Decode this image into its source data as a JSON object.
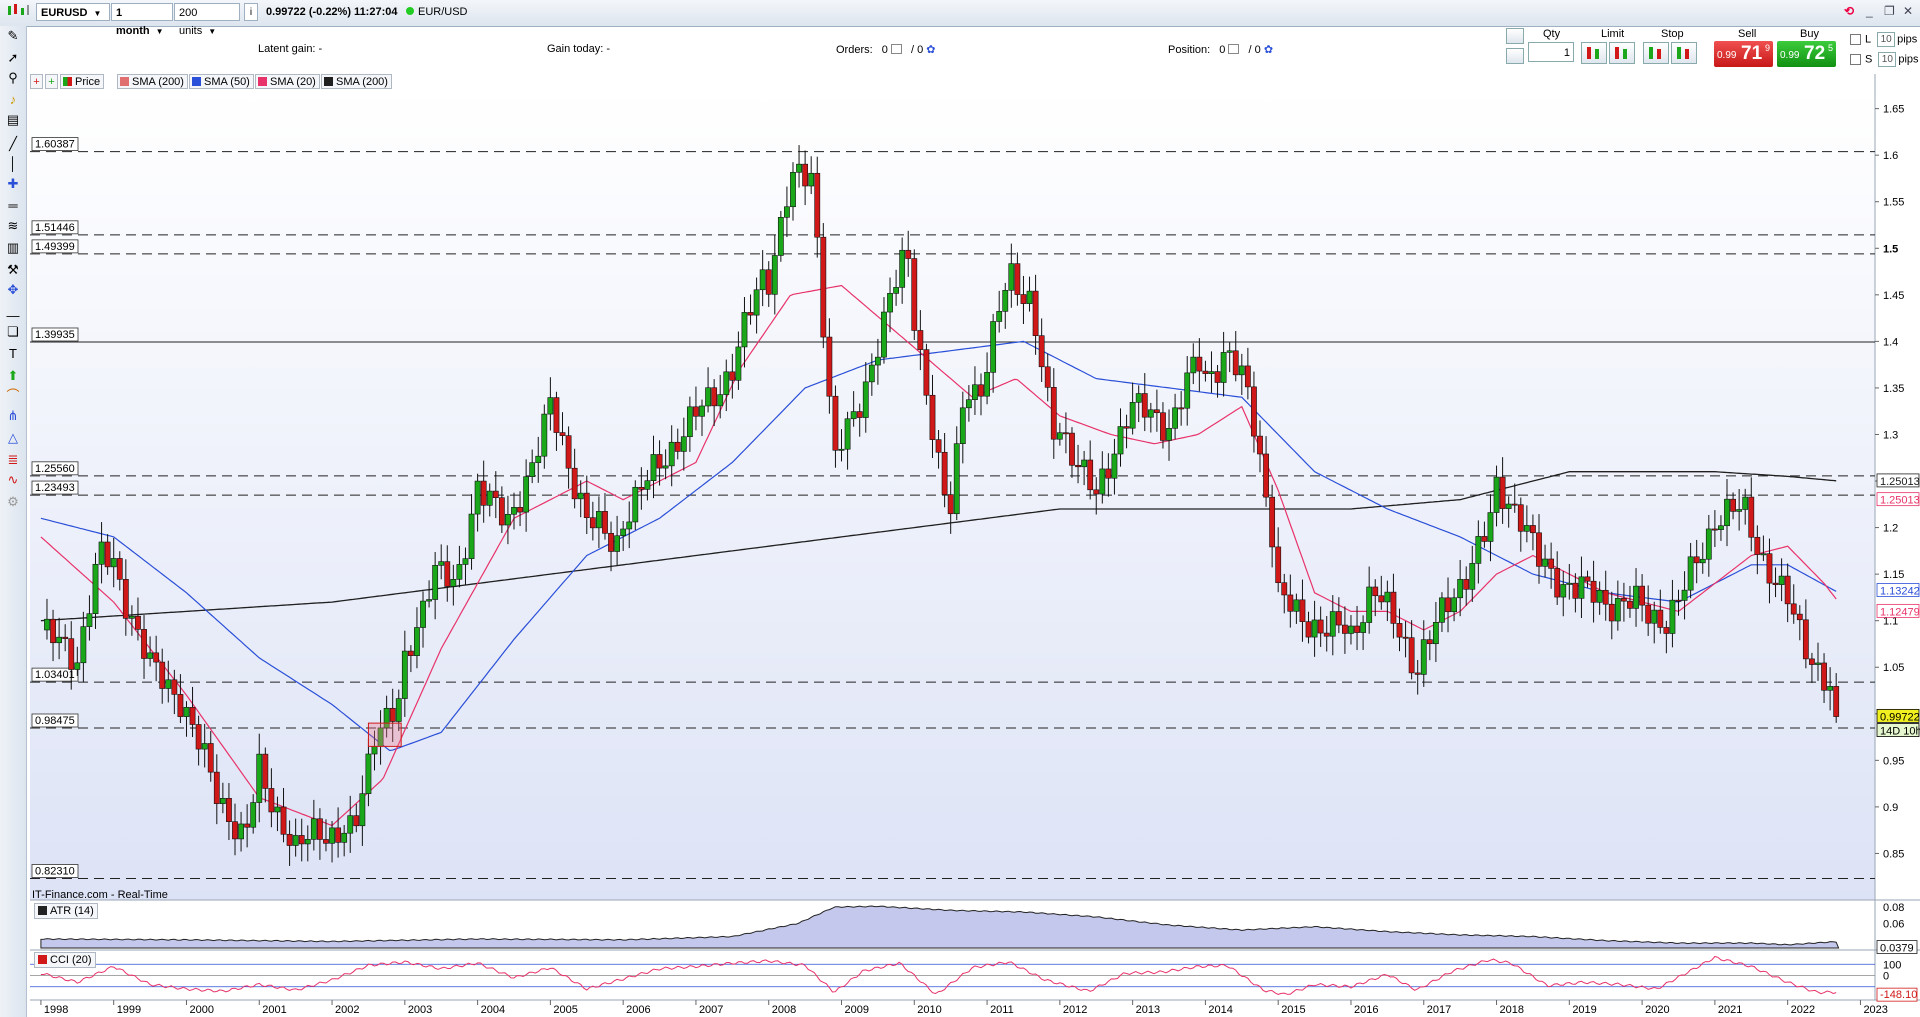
{
  "topbar": {
    "symbol": "EURUSD",
    "timeframe": "1 month",
    "units": "200 units",
    "quote": "0.99722 (-0.22%) 11:27:04",
    "instrument": "EUR/USD"
  },
  "infobar": {
    "latent_gain": "Latent gain:  -",
    "gain_today": "Gain today:  -",
    "orders_label": "Orders:",
    "orders_a": "0",
    "orders_b": "/ 0",
    "position_label": "Position:",
    "position_a": "0",
    "position_b": "/ 0"
  },
  "trade": {
    "qty_label": "Qty",
    "qty_value": "1",
    "limit_label": "Limit",
    "stop_label": "Stop",
    "sell_label": "Sell",
    "buy_label": "Buy",
    "sell_small": "0.99",
    "sell_big": "71",
    "sell_sup": "9",
    "buy_small": "0.99",
    "buy_big": "72",
    "buy_sup": "5",
    "l_label": "L",
    "s_label": "S",
    "l_pips": "10",
    "s_pips": "10",
    "pips": "pips"
  },
  "legend": {
    "price": "Price",
    "sma200a": "SMA (200)",
    "sma50": "SMA (50)",
    "sma20": "SMA (20)",
    "sma200b": "SMA (200)"
  },
  "credit": "IT-Finance.com - Real-Time",
  "atr_label": "ATR (14)",
  "cci_label": "CCI (20)",
  "colors": {
    "up": "#1aa81a",
    "down": "#d01818",
    "sma20": "#e8336a",
    "sma50": "#2a4fd8",
    "sma200": "#202020",
    "plot_bg_top": "#ffffff",
    "plot_bg_bottom": "#dde3f6"
  },
  "chart_data": {
    "type": "candlestick",
    "x_ticks": [
      "1998",
      "1999",
      "2000",
      "2001",
      "2002",
      "2003",
      "2004",
      "2005",
      "2006",
      "2007",
      "2008",
      "2009",
      "2010",
      "2011",
      "2012",
      "2013",
      "2014",
      "2015",
      "2016",
      "2017",
      "2018",
      "2019",
      "2020",
      "2021",
      "2022",
      "2023"
    ],
    "y_ticks": [
      "1.65",
      "1.6",
      "1.55",
      "1.5",
      "1.45",
      "1.4",
      "1.35",
      "1.3",
      "1.25",
      "1.2",
      "1.15",
      "1.1",
      "1.05",
      "1",
      "0.95",
      "0.9",
      "0.85"
    ],
    "ylim": [
      0.8,
      1.67
    ],
    "xlim": [
      1997.85,
      2023.2
    ],
    "key_levels": [
      {
        "label": "1.60387",
        "value": 1.60387,
        "style": "dashed"
      },
      {
        "label": "1.51446",
        "value": 1.51446,
        "style": "dashed"
      },
      {
        "label": "1.49399",
        "value": 1.49399,
        "style": "dashed"
      },
      {
        "label": "1.39935",
        "value": 1.39935,
        "style": "solid"
      },
      {
        "label": "1.25560",
        "value": 1.2556,
        "style": "dashed"
      },
      {
        "label": "1.23493",
        "value": 1.23493,
        "style": "dashed"
      },
      {
        "label": "1.03401",
        "value": 1.03401,
        "style": "dashed"
      },
      {
        "label": "0.98475",
        "value": 0.98475,
        "style": "dashed"
      },
      {
        "label": "0.82310",
        "value": 0.8231,
        "style": "dashed"
      }
    ],
    "right_labels": [
      {
        "label": "1.25013",
        "value": 1.25013,
        "color": "#202020",
        "bg": "#ffffff"
      },
      {
        "label": "1.25013",
        "value": 1.23,
        "color": "#e8336a",
        "bg": "#ffffff"
      },
      {
        "label": "1.13242",
        "value": 1.13242,
        "color": "#2a4fd8",
        "bg": "#ffffff"
      },
      {
        "label": "1.12479",
        "value": 1.11,
        "color": "#e8336a",
        "bg": "#ffffff"
      },
      {
        "label": "0.99722",
        "value": 0.99722,
        "color": "#000000",
        "bg": "#f0f020"
      },
      {
        "label": "14D 10h",
        "value": 0.982,
        "color": "#000000",
        "bg": "#e6f7cf"
      }
    ],
    "anchors": [
      [
        1998.0,
        1.09
      ],
      [
        1998.5,
        1.06
      ],
      [
        1998.8,
        1.17
      ],
      [
        1999.0,
        1.16
      ],
      [
        1999.5,
        1.05
      ],
      [
        1999.9,
        1.02
      ],
      [
        2000.4,
        0.92
      ],
      [
        2000.8,
        0.86
      ],
      [
        2001.0,
        0.94
      ],
      [
        2001.5,
        0.85
      ],
      [
        2001.8,
        0.88
      ],
      [
        2002.0,
        0.87
      ],
      [
        2002.3,
        0.87
      ],
      [
        2002.6,
        0.99
      ],
      [
        2002.9,
        1.0
      ],
      [
        2003.0,
        1.05
      ],
      [
        2003.4,
        1.16
      ],
      [
        2003.7,
        1.13
      ],
      [
        2004.0,
        1.25
      ],
      [
        2004.4,
        1.2
      ],
      [
        2004.9,
        1.3
      ],
      [
        2005.0,
        1.33
      ],
      [
        2005.5,
        1.21
      ],
      [
        2005.9,
        1.18
      ],
      [
        2006.0,
        1.21
      ],
      [
        2006.5,
        1.27
      ],
      [
        2006.9,
        1.31
      ],
      [
        2007.0,
        1.32
      ],
      [
        2007.5,
        1.37
      ],
      [
        2007.9,
        1.47
      ],
      [
        2008.0,
        1.47
      ],
      [
        2008.3,
        1.57
      ],
      [
        2008.6,
        1.58
      ],
      [
        2008.9,
        1.27
      ],
      [
        2009.0,
        1.29
      ],
      [
        2009.2,
        1.32
      ],
      [
        2009.5,
        1.4
      ],
      [
        2009.9,
        1.5
      ],
      [
        2010.0,
        1.43
      ],
      [
        2010.4,
        1.23
      ],
      [
        2010.5,
        1.22
      ],
      [
        2010.7,
        1.36
      ],
      [
        2010.9,
        1.34
      ],
      [
        2011.0,
        1.37
      ],
      [
        2011.3,
        1.48
      ],
      [
        2011.6,
        1.44
      ],
      [
        2011.9,
        1.3
      ],
      [
        2012.0,
        1.31
      ],
      [
        2012.5,
        1.23
      ],
      [
        2012.9,
        1.32
      ],
      [
        2013.0,
        1.33
      ],
      [
        2013.5,
        1.31
      ],
      [
        2013.9,
        1.38
      ],
      [
        2014.0,
        1.36
      ],
      [
        2014.3,
        1.39
      ],
      [
        2014.6,
        1.34
      ],
      [
        2014.9,
        1.21
      ],
      [
        2015.0,
        1.13
      ],
      [
        2015.3,
        1.1
      ],
      [
        2015.9,
        1.09
      ],
      [
        2016.0,
        1.08
      ],
      [
        2016.3,
        1.14
      ],
      [
        2016.9,
        1.05
      ],
      [
        2017.0,
        1.07
      ],
      [
        2017.5,
        1.14
      ],
      [
        2017.9,
        1.2
      ],
      [
        2018.0,
        1.24
      ],
      [
        2018.3,
        1.22
      ],
      [
        2018.6,
        1.16
      ],
      [
        2018.9,
        1.14
      ],
      [
        2019.0,
        1.14
      ],
      [
        2019.5,
        1.12
      ],
      [
        2019.9,
        1.12
      ],
      [
        2020.0,
        1.11
      ],
      [
        2020.3,
        1.1
      ],
      [
        2020.5,
        1.12
      ],
      [
        2020.9,
        1.19
      ],
      [
        2021.0,
        1.21
      ],
      [
        2021.4,
        1.22
      ],
      [
        2021.7,
        1.16
      ],
      [
        2021.9,
        1.13
      ],
      [
        2022.0,
        1.12
      ],
      [
        2022.4,
        1.05
      ],
      [
        2022.6,
        1.02
      ],
      [
        2022.7,
        0.997
      ]
    ],
    "sma20": [
      [
        1998.0,
        1.19
      ],
      [
        1999.0,
        1.12
      ],
      [
        2000.0,
        1.02
      ],
      [
        2001.0,
        0.91
      ],
      [
        2002.0,
        0.88
      ],
      [
        2002.7,
        0.93
      ],
      [
        2003.5,
        1.07
      ],
      [
        2004.5,
        1.21
      ],
      [
        2005.5,
        1.25
      ],
      [
        2006.0,
        1.23
      ],
      [
        2007.0,
        1.27
      ],
      [
        2007.6,
        1.37
      ],
      [
        2008.3,
        1.45
      ],
      [
        2009.0,
        1.46
      ],
      [
        2009.6,
        1.42
      ],
      [
        2010.2,
        1.38
      ],
      [
        2010.8,
        1.34
      ],
      [
        2011.4,
        1.36
      ],
      [
        2012.0,
        1.32
      ],
      [
        2012.7,
        1.3
      ],
      [
        2013.3,
        1.29
      ],
      [
        2013.9,
        1.3
      ],
      [
        2014.5,
        1.33
      ],
      [
        2015.0,
        1.24
      ],
      [
        2015.5,
        1.13
      ],
      [
        2016.0,
        1.11
      ],
      [
        2016.5,
        1.11
      ],
      [
        2017.0,
        1.09
      ],
      [
        2017.5,
        1.11
      ],
      [
        2018.0,
        1.15
      ],
      [
        2018.5,
        1.17
      ],
      [
        2019.0,
        1.15
      ],
      [
        2019.5,
        1.13
      ],
      [
        2020.0,
        1.12
      ],
      [
        2020.5,
        1.11
      ],
      [
        2021.0,
        1.14
      ],
      [
        2021.5,
        1.17
      ],
      [
        2022.0,
        1.18
      ],
      [
        2022.5,
        1.14
      ],
      [
        2022.7,
        1.12
      ]
    ],
    "sma50": [
      [
        1998.0,
        1.21
      ],
      [
        1999.0,
        1.19
      ],
      [
        2000.0,
        1.13
      ],
      [
        2001.0,
        1.06
      ],
      [
        2002.0,
        1.01
      ],
      [
        2002.8,
        0.96
      ],
      [
        2003.5,
        0.98
      ],
      [
        2004.5,
        1.08
      ],
      [
        2005.5,
        1.17
      ],
      [
        2006.5,
        1.21
      ],
      [
        2007.5,
        1.27
      ],
      [
        2008.5,
        1.35
      ],
      [
        2009.5,
        1.38
      ],
      [
        2010.5,
        1.39
      ],
      [
        2011.5,
        1.4
      ],
      [
        2012.5,
        1.36
      ],
      [
        2013.5,
        1.35
      ],
      [
        2014.5,
        1.34
      ],
      [
        2015.5,
        1.26
      ],
      [
        2016.5,
        1.22
      ],
      [
        2017.5,
        1.19
      ],
      [
        2018.5,
        1.15
      ],
      [
        2019.5,
        1.13
      ],
      [
        2020.5,
        1.12
      ],
      [
        2021.5,
        1.16
      ],
      [
        2022.0,
        1.16
      ],
      [
        2022.7,
        1.13
      ]
    ],
    "sma200": [
      [
        1998.0,
        1.1
      ],
      [
        2000.0,
        1.11
      ],
      [
        2002.0,
        1.12
      ],
      [
        2004.0,
        1.14
      ],
      [
        2006.0,
        1.16
      ],
      [
        2008.0,
        1.18
      ],
      [
        2010.0,
        1.2
      ],
      [
        2012.0,
        1.22
      ],
      [
        2014.0,
        1.22
      ],
      [
        2016.0,
        1.22
      ],
      [
        2017.5,
        1.23
      ],
      [
        2019.0,
        1.26
      ],
      [
        2020.0,
        1.26
      ],
      [
        2021.0,
        1.26
      ],
      [
        2022.0,
        1.255
      ],
      [
        2022.7,
        1.25
      ]
    ],
    "box": {
      "x0": 2002.5,
      "x1": 2002.95,
      "y0": 0.965,
      "y1": 0.99
    }
  },
  "atr_data": {
    "type": "area",
    "ylim": [
      0.03,
      0.085
    ],
    "y_ticks": [
      "0.08",
      "0.06"
    ],
    "last_label": "0.0379",
    "points": [
      [
        1998.0,
        0.041
      ],
      [
        2000.0,
        0.04
      ],
      [
        2002.0,
        0.038
      ],
      [
        2004.0,
        0.041
      ],
      [
        2006.0,
        0.04
      ],
      [
        2007.5,
        0.044
      ],
      [
        2008.4,
        0.06
      ],
      [
        2008.9,
        0.08
      ],
      [
        2009.5,
        0.081
      ],
      [
        2010.5,
        0.076
      ],
      [
        2011.5,
        0.074
      ],
      [
        2012.5,
        0.068
      ],
      [
        2013.5,
        0.058
      ],
      [
        2014.5,
        0.052
      ],
      [
        2015.5,
        0.056
      ],
      [
        2016.5,
        0.05
      ],
      [
        2017.5,
        0.046
      ],
      [
        2018.5,
        0.044
      ],
      [
        2019.5,
        0.039
      ],
      [
        2020.5,
        0.036
      ],
      [
        2021.5,
        0.036
      ],
      [
        2022.0,
        0.034
      ],
      [
        2022.7,
        0.0379
      ]
    ]
  },
  "cci_data": {
    "type": "line",
    "ylim": [
      -200,
      200
    ],
    "y_ticks": [
      "100",
      "0"
    ],
    "last_label": "-148.10",
    "points": [
      [
        1998.0,
        20
      ],
      [
        1998.5,
        -60
      ],
      [
        1999.0,
        80
      ],
      [
        1999.5,
        -80
      ],
      [
        2000.0,
        -120
      ],
      [
        2000.5,
        -140
      ],
      [
        2001.0,
        -80
      ],
      [
        2001.5,
        -130
      ],
      [
        2002.0,
        -40
      ],
      [
        2002.5,
        90
      ],
      [
        2003.0,
        120
      ],
      [
        2003.5,
        60
      ],
      [
        2004.0,
        110
      ],
      [
        2004.5,
        -20
      ],
      [
        2005.0,
        70
      ],
      [
        2005.5,
        -120
      ],
      [
        2006.0,
        -30
      ],
      [
        2006.5,
        60
      ],
      [
        2007.0,
        80
      ],
      [
        2007.5,
        110
      ],
      [
        2008.0,
        130
      ],
      [
        2008.5,
        90
      ],
      [
        2008.9,
        -150
      ],
      [
        2009.3,
        40
      ],
      [
        2009.8,
        110
      ],
      [
        2010.3,
        -170
      ],
      [
        2010.8,
        70
      ],
      [
        2011.3,
        120
      ],
      [
        2011.8,
        -40
      ],
      [
        2012.4,
        -140
      ],
      [
        2012.9,
        20
      ],
      [
        2013.4,
        30
      ],
      [
        2013.9,
        80
      ],
      [
        2014.3,
        90
      ],
      [
        2014.8,
        -130
      ],
      [
        2015.1,
        -170
      ],
      [
        2015.5,
        -80
      ],
      [
        2016.0,
        -100
      ],
      [
        2016.5,
        10
      ],
      [
        2016.9,
        -130
      ],
      [
        2017.4,
        40
      ],
      [
        2017.9,
        140
      ],
      [
        2018.2,
        110
      ],
      [
        2018.7,
        -90
      ],
      [
        2019.2,
        -60
      ],
      [
        2019.7,
        -80
      ],
      [
        2020.2,
        -120
      ],
      [
        2020.6,
        20
      ],
      [
        2021.0,
        160
      ],
      [
        2021.5,
        80
      ],
      [
        2022.0,
        -60
      ],
      [
        2022.4,
        -150
      ],
      [
        2022.7,
        -148
      ]
    ]
  }
}
